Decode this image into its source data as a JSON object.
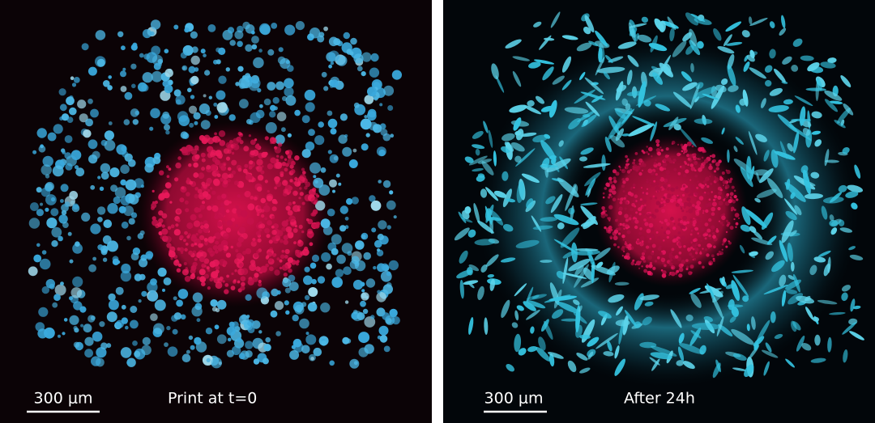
{
  "panels": [
    {
      "scale_bar": "300 μm",
      "caption": "Print at t=0"
    },
    {
      "scale_bar": "300 μm",
      "caption": "After 24h"
    }
  ]
}
